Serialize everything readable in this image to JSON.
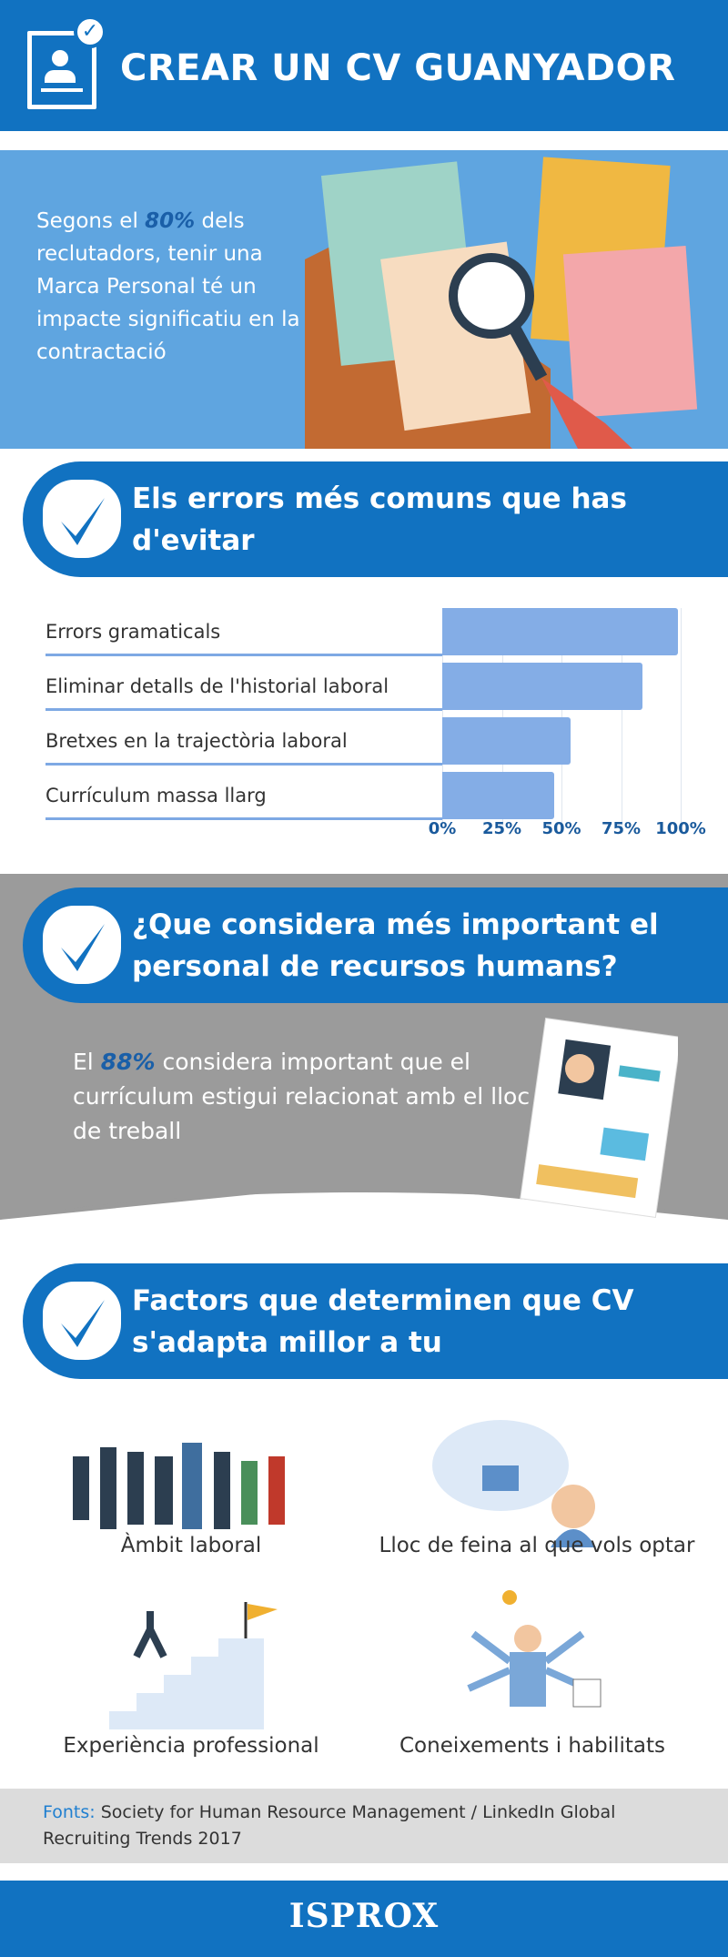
{
  "header": {
    "title": "CREAR UN CV GUANYADOR",
    "icon": "profile-check-icon"
  },
  "intro": {
    "pre": "Segons el ",
    "highlight": "80%",
    "post": " dels reclutadors, tenir una Marca Personal té un impacte significatiu en la contractació"
  },
  "section_errors": {
    "title": "Els errors més comuns que has d'evitar"
  },
  "chart_data": {
    "type": "bar",
    "orientation": "horizontal",
    "categories": [
      "Errors gramaticals",
      "Eliminar detalls de l'historial laboral",
      "Bretxes en la trajectòria laboral",
      "Currículum massa llarg"
    ],
    "values": [
      99,
      84,
      54,
      47
    ],
    "xlim": [
      0,
      100
    ],
    "ticks": [
      "0%",
      "25%",
      "50%",
      "75%",
      "100%"
    ],
    "bar_color": "#84ade6",
    "grid": true
  },
  "section_hr": {
    "title": "¿Que considera més important el personal de recursos humans?",
    "pre": "El ",
    "highlight": "88%",
    "post": " considera important que el currículum estigui relacionat amb el lloc de treball"
  },
  "section_factors": {
    "title": "Factors que determinen que CV s'adapta millor a tu",
    "items": [
      {
        "label": "Àmbit laboral",
        "icon": "workers-icon"
      },
      {
        "label": "Lloc de feina al que vols optar",
        "icon": "workplace-icon"
      },
      {
        "label": "Experiència professional",
        "icon": "stairs-flag-icon"
      },
      {
        "label": "Coneixements i habilitats",
        "icon": "multitask-icon"
      }
    ]
  },
  "sources": {
    "label": "Fonts:",
    "text": " Society for Human Resource Management / LinkedIn Global Recruiting Trends 2017"
  },
  "footer": {
    "logo": "ISPROX"
  },
  "colors": {
    "primary": "#1172c1",
    "light_blue": "#5fa5e0",
    "gray": "#9b9b9b",
    "bar": "#84ade6"
  }
}
